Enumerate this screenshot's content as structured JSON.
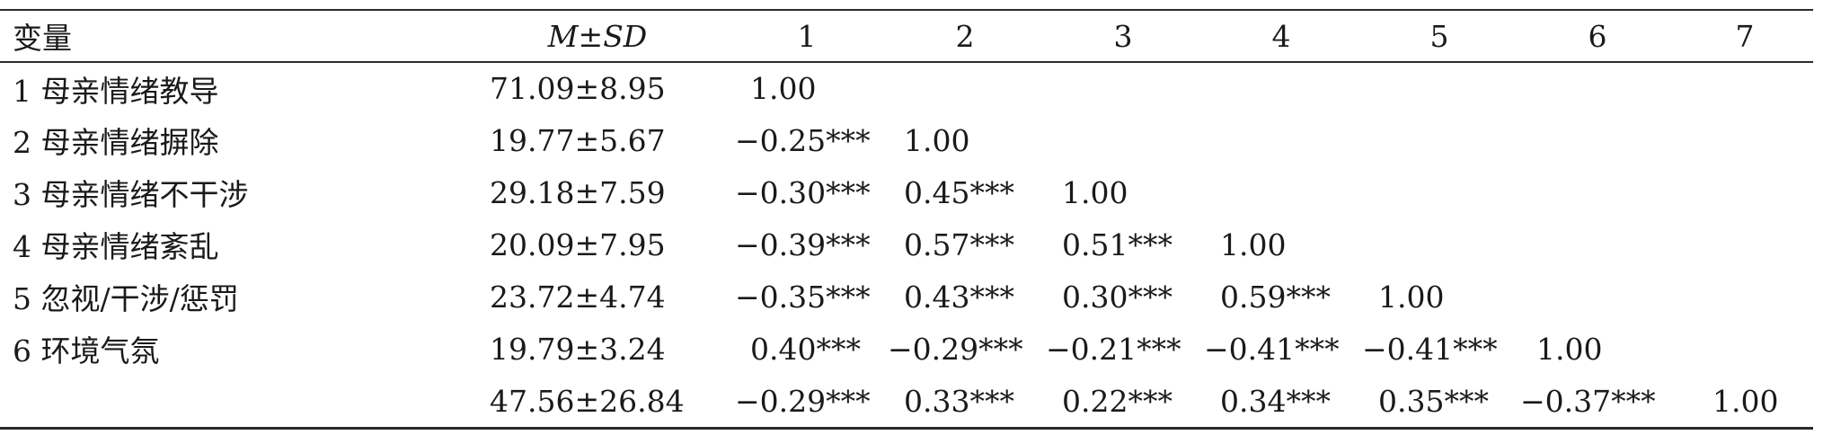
{
  "table": {
    "headers": {
      "variable": "变量",
      "msd_m": "M",
      "msd_pm": "±",
      "msd_sd": "SD",
      "cols": [
        "1",
        "2",
        "3",
        "4",
        "5",
        "6",
        "7"
      ]
    },
    "rows": [
      {
        "label": "1 母亲情绪教导",
        "msd": "71.09±8.95",
        "cells": [
          "1.00",
          "",
          "",
          "",
          "",
          "",
          ""
        ]
      },
      {
        "label": "2 母亲情绪摒除",
        "msd": "19.77±5.67",
        "cells": [
          "−0.25***",
          "1.00",
          "",
          "",
          "",
          "",
          ""
        ]
      },
      {
        "label": "3 母亲情绪不干涉",
        "msd": "29.18±7.59",
        "cells": [
          "−0.30***",
          "0.45***",
          "1.00",
          "",
          "",
          "",
          ""
        ]
      },
      {
        "label": "4 母亲情绪紊乱",
        "msd": "20.09±7.95",
        "cells": [
          "−0.39***",
          "0.57***",
          "0.51***",
          "1.00",
          "",
          "",
          ""
        ]
      },
      {
        "label": "5 忽视/干涉/惩罚",
        "msd": "23.72±4.74",
        "cells": [
          "−0.35***",
          "0.43***",
          "0.30***",
          "0.59***",
          "1.00",
          "",
          ""
        ]
      },
      {
        "label": "6 环境气氛",
        "msd": "19.79±3.24",
        "cells": [
          "0.40***",
          "−0.29***",
          "−0.21***",
          "−0.41***",
          "−0.41***",
          "1.00",
          ""
        ]
      },
      {
        "label": "",
        "msd": "47.56±26.84",
        "cells": [
          "−0.29***",
          "0.33***",
          "0.22***",
          "0.34***",
          "0.35***",
          "−0.37***",
          "1.00"
        ]
      }
    ]
  }
}
